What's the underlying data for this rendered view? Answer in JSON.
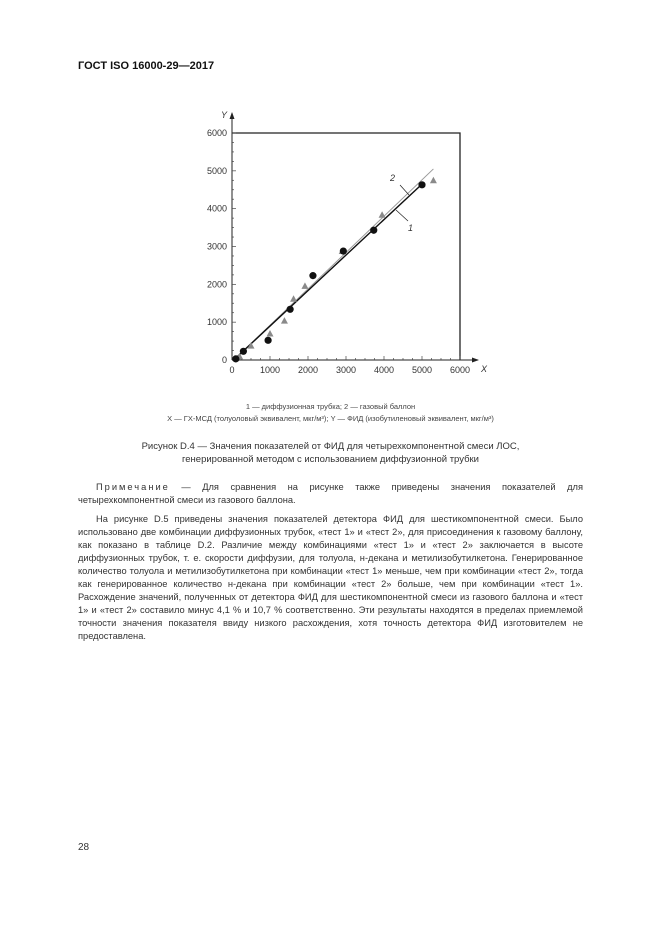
{
  "header": {
    "title": "ГОСТ ISO 16000-29—2017"
  },
  "figure": {
    "legend_line1": "1 — диффузионная трубка; 2 — газовый баллон",
    "legend_line2_x": "X — ГХ-МСД (толуоловый эквивалент, мкг/м³); ",
    "legend_line2_y": "Y — ФИД (изобутиленовый эквивалент, мкг/м³)",
    "caption_line1": "Рисунок D.4 — Значения показателей от ФИД для четырехкомпонентной смеси ЛОС,",
    "caption_line2": "генерированной методом с использованием диффузионной трубки"
  },
  "chart_data": {
    "type": "scatter",
    "xlabel": "X",
    "ylabel": "Y",
    "xlim": [
      0,
      6000
    ],
    "ylim": [
      0,
      6000
    ],
    "xticks": [
      "0",
      "1000",
      "2000",
      "3000",
      "4000",
      "5000",
      "6000"
    ],
    "yticks": [
      "0",
      "1000",
      "2000",
      "3000",
      "4000",
      "5000",
      "6000"
    ],
    "grid": false,
    "series": [
      {
        "name": "1",
        "marker": "circle",
        "color": "#111111",
        "points": [
          [
            100,
            30
          ],
          [
            300,
            230
          ],
          [
            950,
            520
          ],
          [
            1530,
            1340
          ],
          [
            2130,
            2230
          ],
          [
            2930,
            2880
          ],
          [
            3730,
            3430
          ],
          [
            5000,
            4630
          ]
        ],
        "fit": [
          [
            150,
            100
          ],
          [
            5000,
            4650
          ]
        ]
      },
      {
        "name": "2",
        "marker": "triangle",
        "color": "#8a8a8a",
        "points": [
          [
            200,
            100
          ],
          [
            500,
            380
          ],
          [
            1000,
            700
          ],
          [
            1380,
            1040
          ],
          [
            1620,
            1620
          ],
          [
            1920,
            1960
          ],
          [
            2900,
            2880
          ],
          [
            3950,
            3840
          ],
          [
            5300,
            4750
          ]
        ],
        "fit": [
          [
            200,
            150
          ],
          [
            5300,
            5050
          ]
        ]
      }
    ],
    "annotations": [
      "1",
      "2"
    ]
  },
  "note": {
    "label": "Примечание",
    "text": " — Для сравнения на рисунке также приведены значения показателей для четырехкомпонентной смеси из газового баллона."
  },
  "body": {
    "paragraph": "На рисунке D.5 приведены значения показателей детектора ФИД для шестикомпонентной смеси. Было использовано две комбинации диффузионных трубок, «тест 1» и «тест 2», для присоединения к газовому баллону, как показано в таблице D.2. Различие между комбинациями «тест 1» и «тест 2» заключается в высоте диффузионных трубок, т. е. скорости диффузии, для толуола, н-декана и метилизобутилкетона. Генерированное количество толуола и метилизобутилкетона при комбинации «тест 1» меньше, чем при комбинации «тест 2», тогда как генерированное количество н-декана при комбинации «тест 2» больше, чем при комбинации «тест 1». Расхождение значений, полученных от детектора ФИД для шестикомпонентной смеси из газового баллона и «тест 1» и «тест 2» составило минус 4,1 % и 10,7 % соответственно. Эти результаты находятся в пределах приемлемой точности значения показателя ввиду низкого расхождения, хотя точность детектора ФИД изготовителем не предоставлена."
  },
  "footer": {
    "page_number": "28"
  }
}
